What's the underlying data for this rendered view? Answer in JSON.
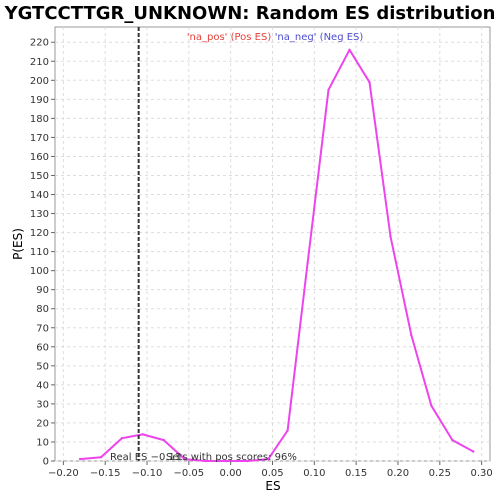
{
  "chart_data": {
    "type": "line",
    "title": "YGTCCTTGR_UNKNOWN: Random ES distribution",
    "xlabel": "ES",
    "ylabel": "P(ES)",
    "xlim": [
      -0.21,
      0.31
    ],
    "ylim": [
      0,
      228
    ],
    "x_ticks": [
      -0.2,
      -0.15,
      -0.1,
      -0.05,
      0.0,
      0.05,
      0.1,
      0.15,
      0.2,
      0.25,
      0.3
    ],
    "x_tick_labels": [
      "−0.20",
      "−0.15",
      "−0.10",
      "−0.05",
      "0.00",
      "0.05",
      "0.10",
      "0.15",
      "0.20",
      "0.25",
      "0.30"
    ],
    "y_ticks": [
      0,
      10,
      20,
      30,
      40,
      50,
      60,
      70,
      80,
      90,
      100,
      110,
      120,
      130,
      140,
      150,
      160,
      170,
      180,
      190,
      200,
      210,
      220
    ],
    "grid": true,
    "legend": [
      {
        "label": "'na_pos' (Pos ES)",
        "color": "#e8413c"
      },
      {
        "label": "'na_neg' (Neg ES)",
        "color": "#4c4ccf"
      }
    ],
    "legend_position": "top-center",
    "series": [
      {
        "color": "#ee44ee",
        "x": [
          -0.18,
          -0.155,
          -0.13,
          -0.105,
          -0.08,
          -0.055,
          -0.03,
          -0.005,
          0.02,
          0.045,
          0.068,
          0.092,
          0.117,
          0.142,
          0.166,
          0.191,
          0.216,
          0.24,
          0.265,
          0.29
        ],
        "y": [
          1,
          2,
          12,
          14,
          11,
          1,
          0,
          0,
          0,
          1,
          16,
          104,
          195,
          216,
          199,
          118,
          66,
          29,
          11,
          5
        ]
      }
    ],
    "real_es": {
      "x": -0.11,
      "label": "Real ES −0.11"
    },
    "annotation": "Sets with pos scores: 96%"
  }
}
